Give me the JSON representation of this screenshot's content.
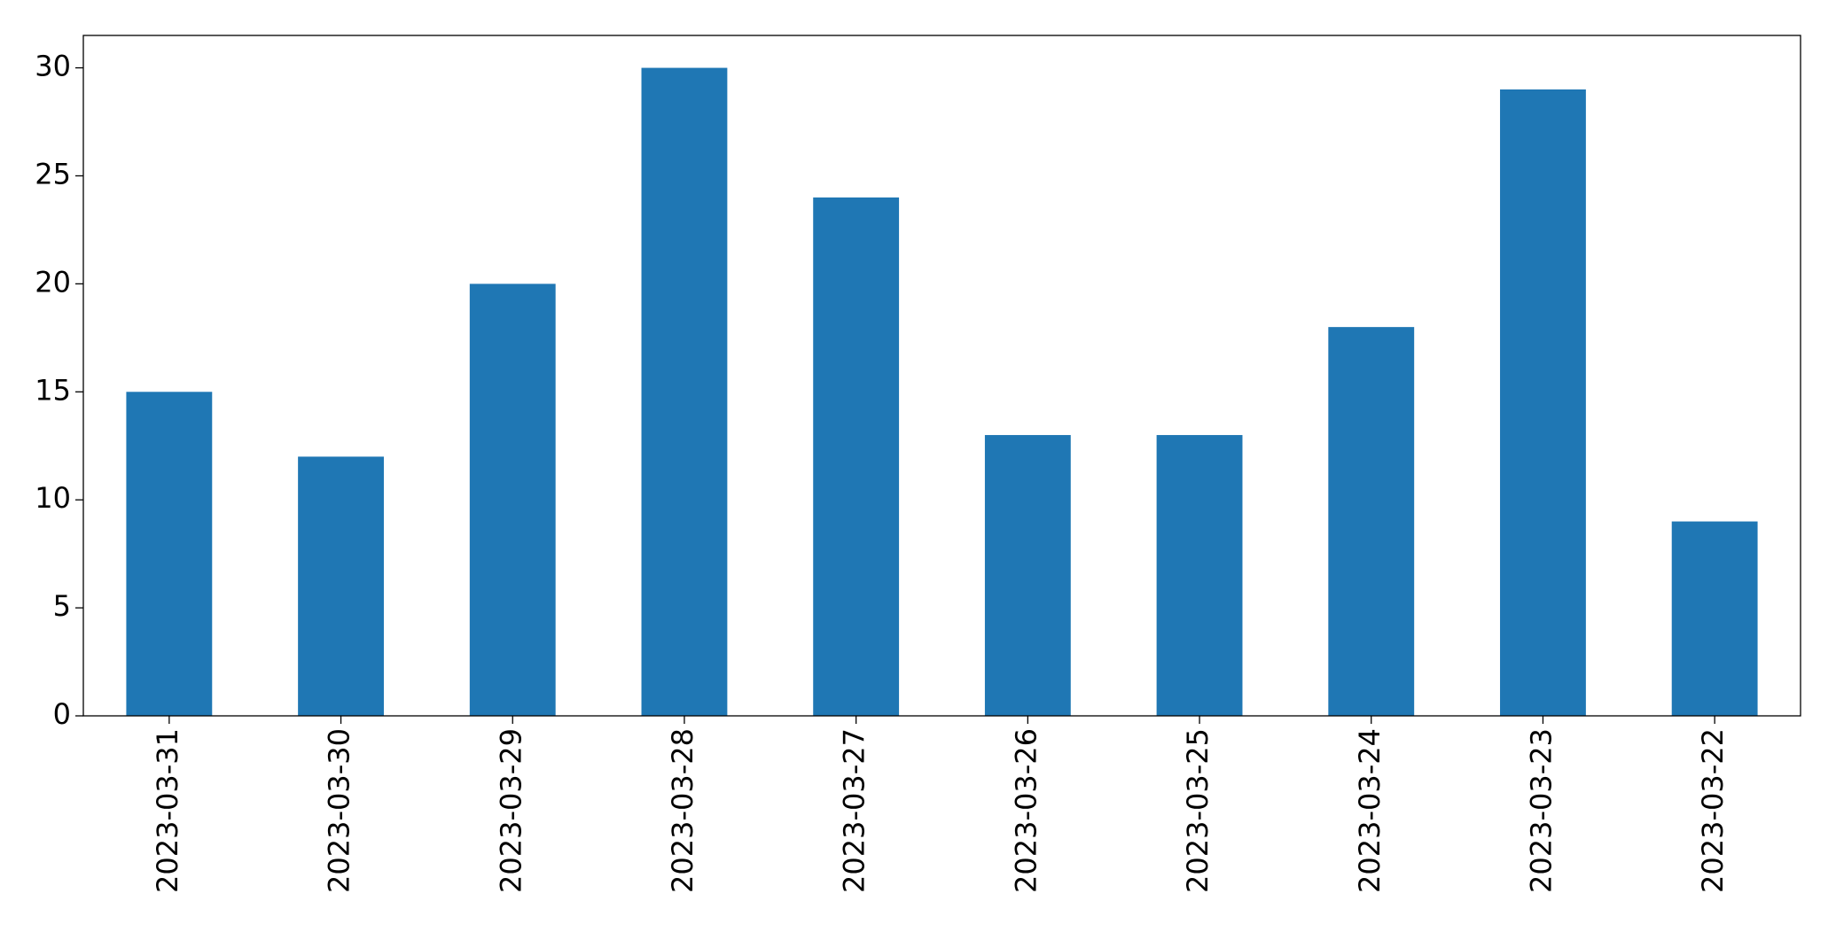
{
  "chart_data": {
    "type": "bar",
    "categories": [
      "2023-03-31",
      "2023-03-30",
      "2023-03-29",
      "2023-03-28",
      "2023-03-27",
      "2023-03-26",
      "2023-03-25",
      "2023-03-24",
      "2023-03-23",
      "2023-03-22"
    ],
    "values": [
      15,
      12,
      20,
      30,
      24,
      13,
      13,
      18,
      29,
      9
    ],
    "color": "#1f77b4",
    "ylim": [
      0,
      31.5
    ],
    "yticks": [
      0,
      5,
      10,
      15,
      20,
      25,
      30
    ],
    "grid": false
  }
}
